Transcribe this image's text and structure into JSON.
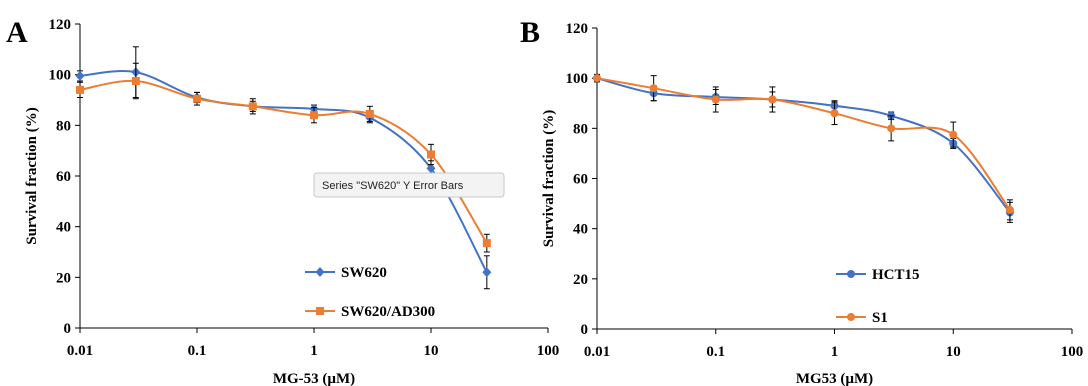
{
  "panels": [
    {
      "letter": "A",
      "chart_data": {
        "type": "line",
        "xscale": "log",
        "xlim": [
          0.01,
          100
        ],
        "ylim": [
          0,
          120
        ],
        "xticks": [
          0.01,
          0.1,
          1,
          10,
          100
        ],
        "xtick_labels": [
          "0.01",
          "0.1",
          "1",
          "10",
          "100"
        ],
        "yticks": [
          0,
          20,
          40,
          60,
          80,
          100,
          120
        ],
        "ytick_labels": [
          "0",
          "20",
          "40",
          "60",
          "80",
          "100",
          "120"
        ],
        "xlabel": "MG-53 (µM)",
        "ylabel": "Survival fraction (%)",
        "grid": false,
        "legend_position": "bottom-right",
        "series": [
          {
            "name": "SW620",
            "color": "#4472C4",
            "marker": "diamond",
            "x": [
              0.01,
              0.03,
              0.1,
              0.3,
              1,
              3,
              10,
              30
            ],
            "y": [
              99.5,
              101,
              91,
              87.5,
              86.5,
              83,
              63,
              22
            ],
            "err": [
              2,
              10,
              2,
              2,
              1.5,
              2,
              3,
              6.5
            ]
          },
          {
            "name": "SW620/AD300",
            "color": "#ED7D31",
            "marker": "square",
            "x": [
              0.01,
              0.03,
              0.1,
              0.3,
              1,
              3,
              10,
              30
            ],
            "y": [
              94,
              97.5,
              90.5,
              87.5,
              84,
              84.5,
              68.5,
              33.5
            ],
            "err": [
              3,
              7,
              2.5,
              3,
              3,
              3,
              4,
              3.5
            ]
          }
        ]
      },
      "tooltip": "Series \"SW620\" Y Error Bars"
    },
    {
      "letter": "B",
      "chart_data": {
        "type": "line",
        "xscale": "log",
        "xlim": [
          0.01,
          100
        ],
        "ylim": [
          0,
          120
        ],
        "xticks": [
          0.01,
          0.1,
          1,
          10,
          100
        ],
        "xtick_labels": [
          "0.01",
          "0.1",
          "1",
          "10",
          "100"
        ],
        "yticks": [
          0,
          20,
          40,
          60,
          80,
          100,
          120
        ],
        "ytick_labels": [
          "0",
          "20",
          "40",
          "60",
          "80",
          "100",
          "120"
        ],
        "xlabel": "MG53 (µM)",
        "ylabel": "Survival fraction (%)",
        "grid": false,
        "legend_position": "bottom-right",
        "series": [
          {
            "name": "HCT15",
            "color": "#4472C4",
            "marker": "circle",
            "x": [
              0.01,
              0.03,
              0.1,
              0.3,
              1,
              3,
              10,
              30
            ],
            "y": [
              100,
              94,
              92.5,
              91.5,
              89,
              85,
              74,
              46.5
            ],
            "err": [
              1,
              3,
              3,
              3,
              2,
              1.5,
              2,
              4
            ]
          },
          {
            "name": "S1",
            "color": "#ED7D31",
            "marker": "circle",
            "x": [
              0.01,
              0.03,
              0.1,
              0.3,
              1,
              3,
              10,
              30
            ],
            "y": [
              100,
              96,
              91.5,
              91.5,
              86,
              80,
              77.5,
              47.5
            ],
            "err": [
              1.5,
              5,
              5,
              5,
              4.5,
              5,
              5,
              4
            ]
          }
        ]
      },
      "tooltip": ""
    }
  ]
}
